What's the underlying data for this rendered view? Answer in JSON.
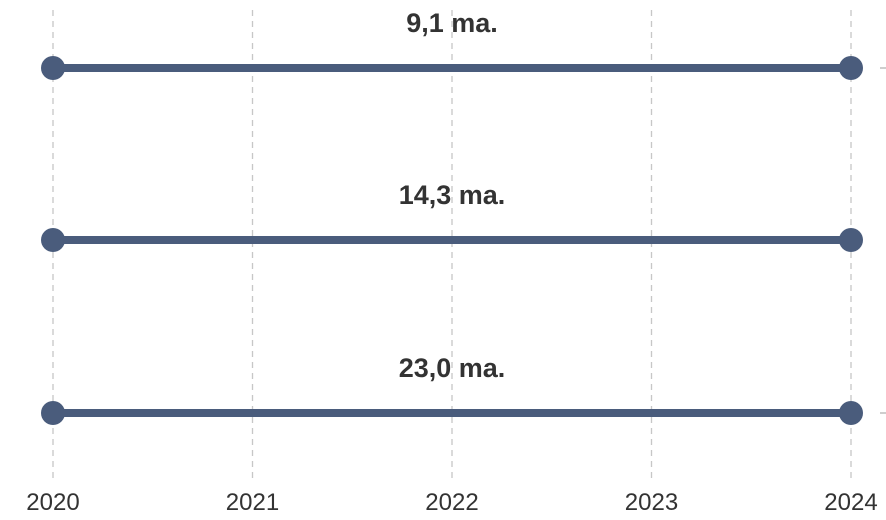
{
  "chart_data": {
    "type": "line",
    "x": [
      2020,
      2024
    ],
    "tick_labels": [
      "2020",
      "2021",
      "2022",
      "2023",
      "2024"
    ],
    "xlim": [
      2020,
      2024
    ],
    "series": [
      {
        "values": [
          1,
          1
        ],
        "label": "9,1 ma."
      },
      {
        "values": [
          2,
          2
        ],
        "label": "14,3 ma."
      },
      {
        "values": [
          3,
          3
        ],
        "label": "23,0 ma."
      }
    ],
    "title": "",
    "xlabel": "",
    "ylabel": "",
    "grid": "vertical dashed",
    "legend": "none",
    "colors": {
      "line": "#4a5c7c",
      "grid": "#c7c7c7",
      "text": "#333333"
    }
  }
}
